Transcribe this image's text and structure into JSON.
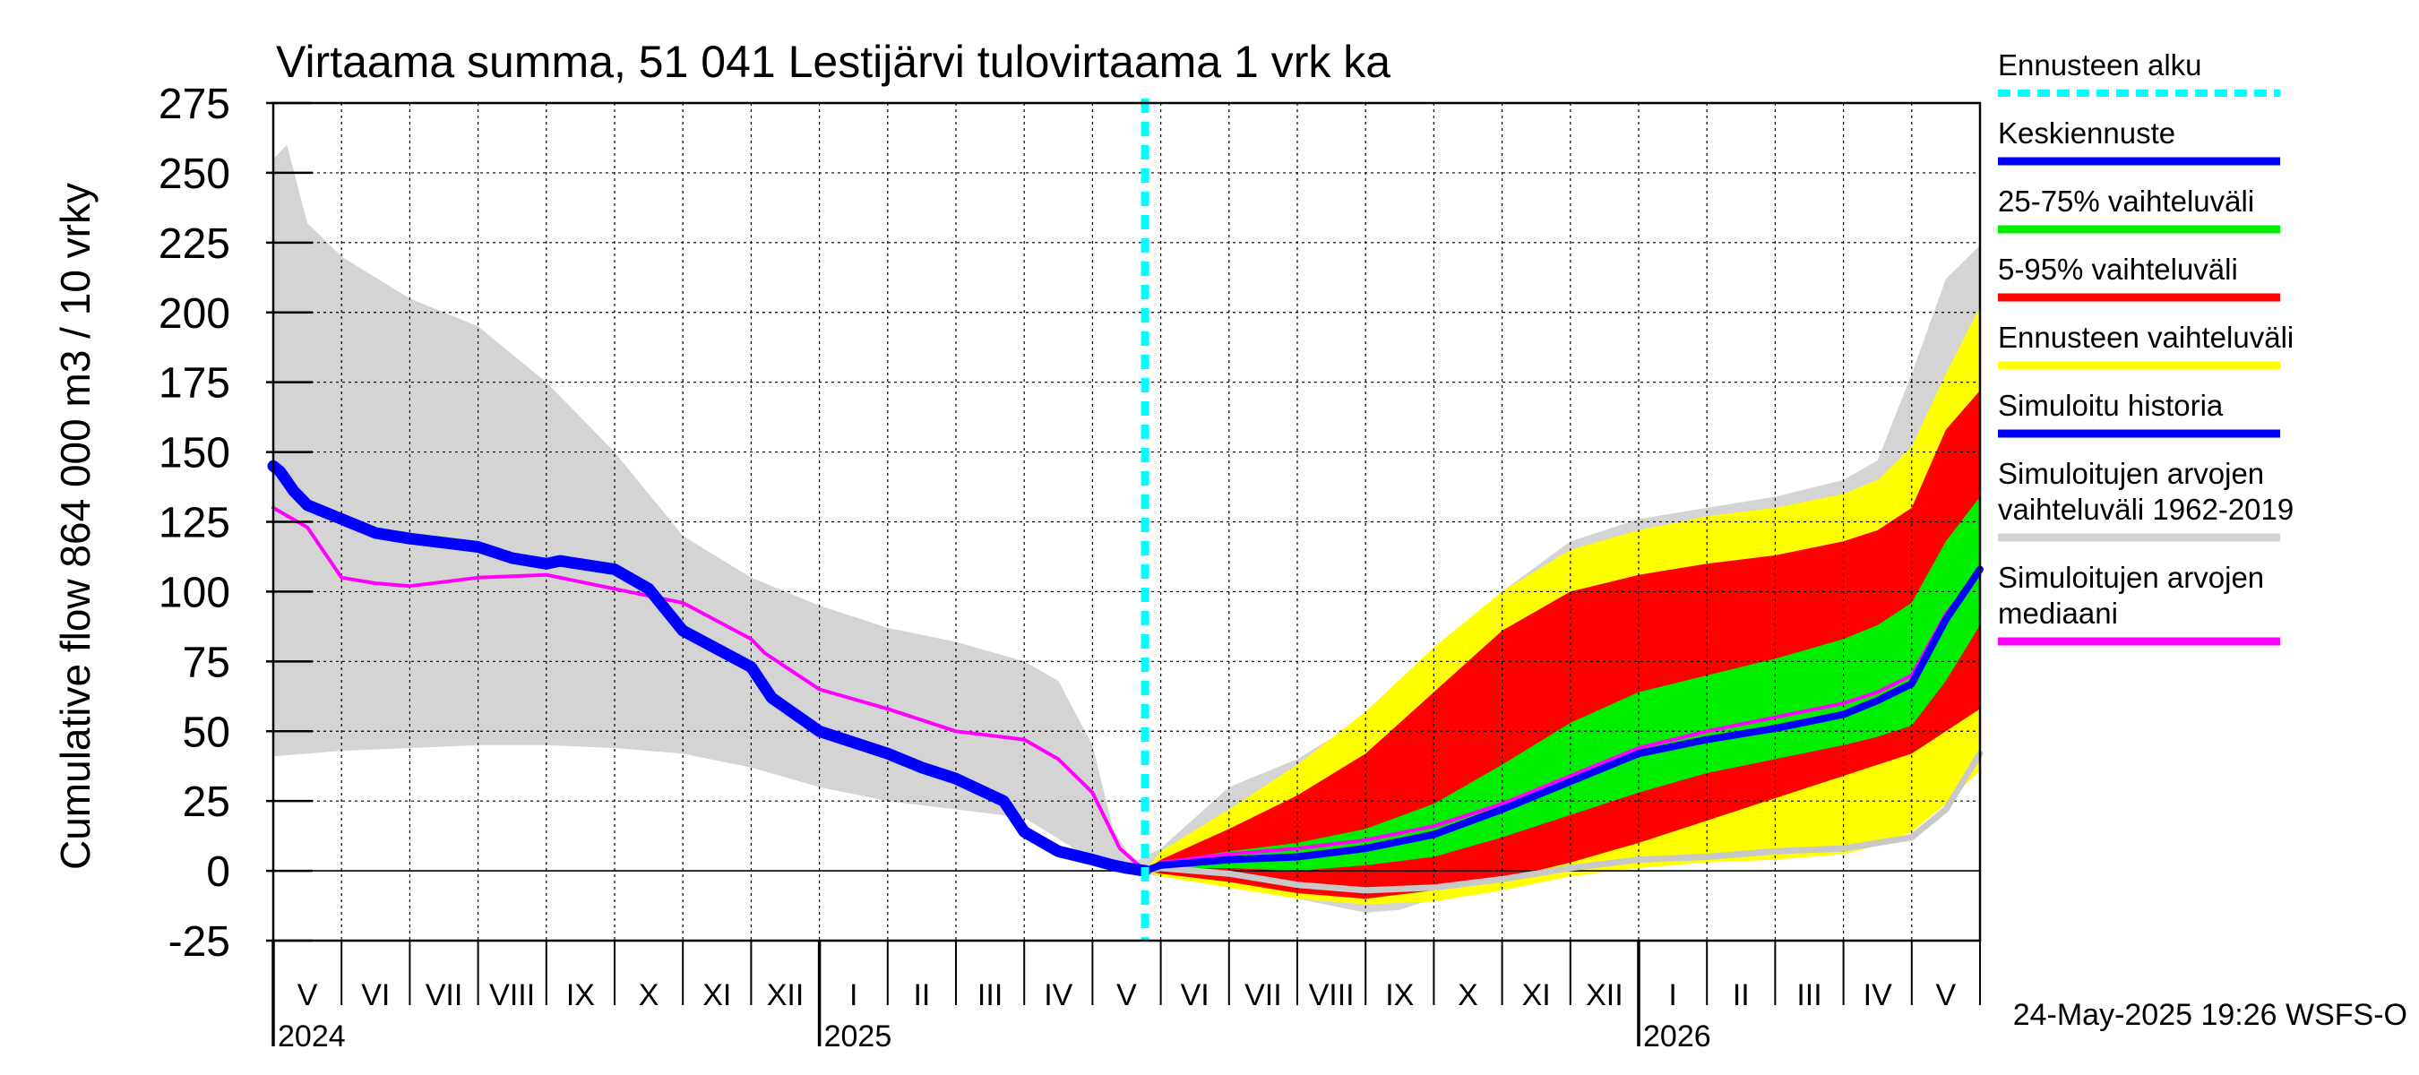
{
  "colors": {
    "forecast_start": "#00ffff",
    "mean_forecast": "#0000ff",
    "band_25_75": "#00ee00",
    "band_5_95": "#ff0000",
    "forecast_range": "#ffff00",
    "simulated_history": "#0000ff",
    "sim_range": "#d4d4d4",
    "sim_median": "#ff00ff",
    "grid": "#000000"
  },
  "footer": {
    "timestamp": "24-May-2025 19:26 WSFS-O"
  },
  "chart_data": {
    "type": "area",
    "title": "Virtaama summa, 51 041 Lestijärvi tulovirtaama 1 vrk ka",
    "ylabel": "Cumulative flow     864 000 m3 / 10 vrky",
    "ylim": [
      -25,
      275
    ],
    "yticks": [
      -25,
      0,
      25,
      50,
      75,
      100,
      125,
      150,
      175,
      200,
      225,
      250,
      275
    ],
    "xlim_months": [
      0,
      25
    ],
    "month_labels": [
      "V",
      "VI",
      "VII",
      "VIII",
      "IX",
      "X",
      "XI",
      "XII",
      "I",
      "II",
      "III",
      "IV",
      "V",
      "VI",
      "VII",
      "VIII",
      "IX",
      "X",
      "XI",
      "XII",
      "I",
      "II",
      "III",
      "IV",
      "V"
    ],
    "year_labels": [
      {
        "label": "2024",
        "month": 0
      },
      {
        "label": "2025",
        "month": 8
      },
      {
        "label": "2026",
        "month": 20
      }
    ],
    "forecast_start_month": 12.77,
    "legend": [
      {
        "key": "forecast_start",
        "label": "Ennusteen alku",
        "style": "dashed"
      },
      {
        "key": "mean_forecast",
        "label": "Keskiennuste",
        "style": "line"
      },
      {
        "key": "band_25_75",
        "label": "25-75% vaihteluväli",
        "style": "line"
      },
      {
        "key": "band_5_95",
        "label": "5-95% vaihteluväli",
        "style": "line"
      },
      {
        "key": "forecast_range",
        "label": "Ennusteen vaihteluväli",
        "style": "line"
      },
      {
        "key": "simulated_history",
        "label": "Simuloitu historia",
        "style": "line"
      },
      {
        "key": "sim_range",
        "label": "Simuloitujen arvojen vaihteluväli 1962-2019",
        "lines": [
          "Simuloitujen arvojen",
          "vaihteluväli 1962-2019"
        ],
        "style": "line"
      },
      {
        "key": "sim_median",
        "label": "Simuloitujen arvojen mediaani",
        "lines": [
          "Simuloitujen arvojen",
          "mediaani"
        ],
        "style": "line"
      }
    ],
    "series": {
      "sim_range_upper": {
        "x": [
          0,
          0.2,
          0.5,
          1,
          2,
          3,
          4,
          5,
          6,
          7,
          8,
          9,
          10,
          11,
          11.5,
          12,
          12.3,
          12.6,
          13,
          14,
          15,
          16,
          17,
          18,
          19,
          20,
          21,
          22,
          23,
          23.5,
          24,
          24.5,
          25
        ],
        "y": [
          255,
          260,
          232,
          220,
          205,
          195,
          175,
          150,
          120,
          105,
          95,
          87,
          82,
          75,
          68,
          45,
          15,
          3,
          8,
          30,
          40,
          55,
          75,
          100,
          118,
          126,
          130,
          134,
          140,
          147,
          178,
          212,
          224
        ]
      },
      "sim_range_lower": {
        "x": [
          0,
          1,
          2,
          3,
          4,
          5,
          6,
          7,
          8,
          9,
          10,
          11,
          12,
          12.5,
          13,
          14,
          15,
          16,
          16.5,
          17,
          18,
          19,
          20,
          21,
          22,
          23,
          23.5,
          24,
          24.5,
          25
        ],
        "y": [
          41,
          43,
          44,
          45,
          45,
          44,
          42,
          37,
          30,
          25,
          22,
          19,
          4,
          0,
          -2,
          -5,
          -10,
          -15,
          -14,
          -10,
          -4,
          2,
          5,
          7,
          9,
          12,
          17,
          25,
          35,
          44
        ]
      },
      "forecast_range_upper": {
        "x": [
          12.77,
          13,
          14,
          15,
          16,
          17,
          18,
          19,
          20,
          21,
          22,
          23,
          23.5,
          24,
          24.5,
          25
        ],
        "y": [
          0,
          7,
          22,
          38,
          57,
          80,
          100,
          115,
          122,
          127,
          130,
          135,
          140,
          152,
          178,
          202
        ]
      },
      "forecast_range_lower": {
        "x": [
          12.77,
          13,
          14,
          15,
          16,
          17,
          18,
          19,
          20,
          21,
          22,
          23,
          23.5,
          24,
          24.5,
          25
        ],
        "y": [
          0,
          -2,
          -6,
          -10,
          -12,
          -11,
          -7,
          -2,
          1,
          3,
          4,
          6,
          9,
          14,
          24,
          36
        ]
      },
      "band_5_95_upper": {
        "x": [
          12.77,
          13,
          14,
          15,
          16,
          17,
          18,
          19,
          20,
          21,
          22,
          23,
          23.5,
          24,
          24.5,
          25
        ],
        "y": [
          0,
          4,
          15,
          27,
          42,
          64,
          86,
          100,
          106,
          110,
          113,
          118,
          122,
          130,
          158,
          172
        ]
      },
      "band_5_95_lower": {
        "x": [
          12.77,
          13,
          14,
          15,
          16,
          17,
          18,
          19,
          20,
          21,
          22,
          23,
          23.5,
          24,
          24.5,
          25
        ],
        "y": [
          0,
          -1,
          -4,
          -8,
          -10,
          -7,
          -3,
          3,
          10,
          18,
          26,
          34,
          38,
          42,
          50,
          58
        ]
      },
      "band_25_75_upper": {
        "x": [
          12.77,
          13,
          14,
          15,
          16,
          17,
          18,
          19,
          20,
          21,
          22,
          23,
          23.5,
          24,
          24.5,
          25
        ],
        "y": [
          0,
          3,
          7,
          10,
          15,
          24,
          38,
          53,
          64,
          70,
          76,
          83,
          88,
          96,
          118,
          134
        ]
      },
      "band_25_75_lower": {
        "x": [
          12.77,
          13,
          14,
          15,
          16,
          17,
          18,
          19,
          20,
          21,
          22,
          23,
          23.5,
          24,
          24.5,
          25
        ],
        "y": [
          0,
          1,
          1,
          0,
          2,
          5,
          12,
          20,
          28,
          35,
          40,
          45,
          48,
          52,
          68,
          88
        ]
      },
      "sim_median": {
        "x": [
          0,
          0.5,
          1,
          1.5,
          2,
          3,
          4,
          5,
          6,
          7,
          7.2,
          8,
          9,
          10,
          11,
          11.5,
          12,
          12.4,
          12.77,
          13,
          14,
          15,
          16,
          17,
          18,
          19,
          20,
          21,
          22,
          23,
          23.5,
          24,
          24.5,
          25
        ],
        "y": [
          130,
          123,
          105,
          103,
          102,
          105,
          106,
          101,
          96,
          83,
          78,
          65,
          58,
          50,
          47,
          40,
          28,
          8,
          0,
          3,
          6,
          8,
          11,
          16,
          24,
          34,
          44,
          50,
          55,
          60,
          64,
          70,
          92,
          107
        ]
      },
      "sim_history": {
        "x": [
          0,
          0.1,
          0.3,
          0.5,
          1,
          1.5,
          2,
          3,
          3.5,
          4,
          4.2,
          5,
          5.5,
          6,
          7,
          7.3,
          8,
          9,
          9.5,
          10,
          10.7,
          11,
          11.5,
          12,
          12.3,
          12.5,
          12.77
        ],
        "y": [
          145,
          143,
          136,
          131,
          126,
          121,
          119,
          116,
          112,
          110,
          111,
          108,
          101,
          86,
          73,
          62,
          50,
          42,
          37,
          33,
          25,
          14,
          7,
          4,
          2,
          1,
          0
        ]
      },
      "mean_forecast": {
        "x": [
          12.77,
          13,
          14,
          15,
          16,
          17,
          18,
          19,
          20,
          21,
          22,
          23,
          23.5,
          24,
          24.5,
          25
        ],
        "y": [
          0,
          2,
          4,
          5,
          8,
          13,
          22,
          32,
          42,
          47,
          51,
          56,
          61,
          67,
          90,
          108
        ]
      },
      "sim_gray_lower_extension": {
        "x": [
          12.77,
          13,
          14,
          15,
          16,
          17,
          18,
          19,
          20,
          21,
          22,
          23,
          23.5,
          24,
          24.5,
          25
        ],
        "y": [
          0,
          1,
          -1,
          -5,
          -7,
          -6,
          -3,
          1,
          4,
          5,
          7,
          8,
          10,
          12,
          22,
          42
        ]
      }
    }
  }
}
